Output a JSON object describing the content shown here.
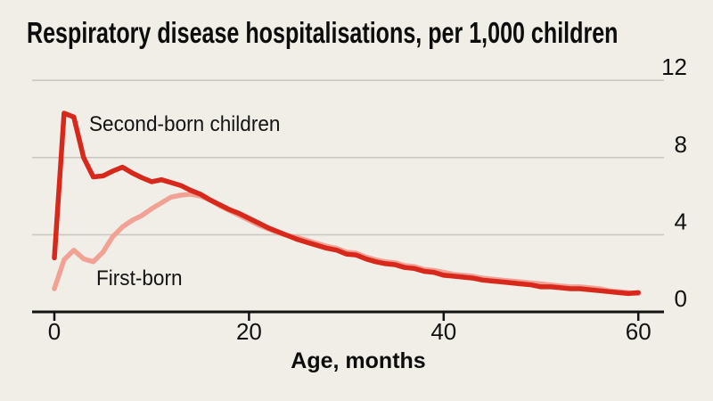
{
  "header": {
    "title": "Respiratory disease hospitalisations, per 1,000 children"
  },
  "chart_data": {
    "type": "line",
    "title": "Respiratory disease hospitalisations, per 1,000 children",
    "xlabel": "Age, months",
    "ylabel": "",
    "xlim": [
      0,
      60
    ],
    "ylim": [
      0,
      12
    ],
    "x_ticks": [
      0,
      20,
      40,
      60
    ],
    "y_ticks": [
      0,
      4,
      8,
      12
    ],
    "grid": "horizontal gridlines at 4, 8, 12; y labels on right side",
    "legend_position": "inline labels on lines",
    "x_start": 0,
    "x_step": 1,
    "x_unit": "months",
    "series": [
      {
        "name": "Second-born children",
        "color": "#d7281b",
        "values": [
          2.8,
          10.3,
          10.1,
          8.0,
          7.0,
          7.05,
          7.3,
          7.5,
          7.2,
          6.95,
          6.75,
          6.85,
          6.7,
          6.55,
          6.3,
          6.1,
          5.8,
          5.55,
          5.3,
          5.1,
          4.85,
          4.6,
          4.35,
          4.15,
          3.95,
          3.75,
          3.6,
          3.45,
          3.3,
          3.2,
          3.0,
          2.95,
          2.75,
          2.6,
          2.5,
          2.45,
          2.3,
          2.25,
          2.1,
          2.05,
          1.9,
          1.85,
          1.8,
          1.75,
          1.65,
          1.6,
          1.55,
          1.5,
          1.45,
          1.4,
          1.3,
          1.3,
          1.25,
          1.2,
          1.2,
          1.15,
          1.1,
          1.05,
          1.0,
          0.95,
          1.0
        ]
      },
      {
        "name": "First-born",
        "color": "#f2a195",
        "values": [
          1.2,
          2.7,
          3.2,
          2.75,
          2.6,
          3.1,
          3.9,
          4.4,
          4.75,
          5.0,
          5.35,
          5.65,
          5.95,
          6.05,
          6.1,
          6.0,
          5.8,
          5.5,
          5.25,
          5.0,
          4.75,
          4.5,
          4.3,
          4.1,
          3.95,
          3.85,
          3.7,
          3.55,
          3.4,
          3.3,
          3.1,
          3.05,
          2.85,
          2.7,
          2.6,
          2.55,
          2.4,
          2.35,
          2.2,
          2.15,
          2.05,
          1.95,
          1.9,
          1.85,
          1.75,
          1.7,
          1.65,
          1.6,
          1.55,
          1.5,
          1.45,
          1.4,
          1.35,
          1.3,
          1.3,
          1.25,
          1.2,
          1.1,
          1.05,
          1.0,
          0.95
        ]
      }
    ]
  },
  "style": {
    "background": "#f0eee7",
    "grid_color": "#cac8c0",
    "axis_color": "#121212",
    "text_color": "#111111",
    "red": "#d7281b",
    "pink": "#f2a195"
  }
}
